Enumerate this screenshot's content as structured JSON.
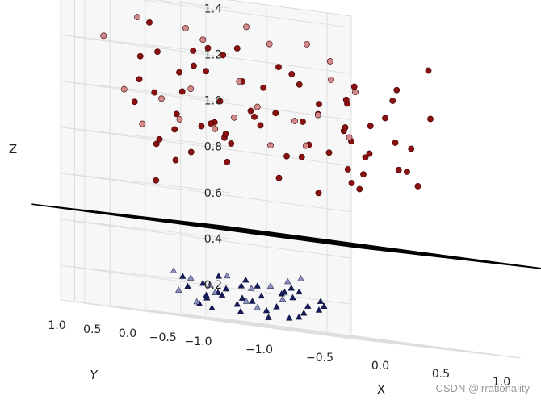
{
  "chart_data": {
    "type": "scatter",
    "projection": "3d",
    "title": "",
    "axes": {
      "x": {
        "label": "X",
        "ticks": [
          "−1.0",
          "−0.5",
          "0.0",
          "0.5",
          "1.0"
        ],
        "range": [
          -1.2,
          1.2
        ]
      },
      "y": {
        "label": "Y",
        "ticks": [
          "1.0",
          "0.5",
          "0.0",
          "−0.5",
          "−1.0"
        ],
        "range": [
          -1.2,
          1.2
        ]
      },
      "z": {
        "label": "Z",
        "ticks": [
          "0.2",
          "0.4",
          "0.6",
          "0.8",
          "1.0",
          "1.2",
          "1.4"
        ],
        "range": [
          0.05,
          1.45
        ]
      }
    },
    "grid": true,
    "plane": {
      "z": 0.45,
      "color": "#008000",
      "edge_color": "#000000",
      "divisions": 3
    },
    "series": [
      {
        "marker": "circle",
        "color": "#8b1010",
        "points": [
          [
            -1.05,
            0.2,
            1.3
          ],
          [
            -0.98,
            -0.3,
            1.2
          ],
          [
            -0.95,
            0.5,
            1.15
          ],
          [
            -0.92,
            0.0,
            1.1
          ],
          [
            -0.9,
            0.6,
            1.05
          ],
          [
            -0.95,
            0.3,
            1.0
          ],
          [
            -0.88,
            0.7,
            0.95
          ],
          [
            -0.92,
            -0.5,
            0.9
          ],
          [
            -0.9,
            0.1,
            0.85
          ],
          [
            -0.85,
            0.4,
            0.8
          ],
          [
            -0.8,
            -0.2,
            1.22
          ],
          [
            -0.75,
            0.6,
            1.18
          ],
          [
            -0.7,
            0.0,
            1.12
          ],
          [
            -0.72,
            0.3,
            1.02
          ],
          [
            -0.68,
            -0.6,
            0.97
          ],
          [
            -0.65,
            0.5,
            0.92
          ],
          [
            -0.62,
            0.2,
            0.88
          ],
          [
            -0.78,
            -0.4,
            0.84
          ],
          [
            -0.7,
            0.7,
            0.78
          ],
          [
            -0.82,
            0.5,
            0.62
          ],
          [
            -0.5,
            0.1,
            1.2
          ],
          [
            -0.45,
            0.6,
            1.14
          ],
          [
            -0.4,
            -0.3,
            1.08
          ],
          [
            -0.35,
            0.4,
            1.0
          ],
          [
            -0.3,
            0.0,
            0.95
          ],
          [
            -0.25,
            0.7,
            0.9
          ],
          [
            -0.42,
            0.2,
            0.86
          ],
          [
            -0.2,
            -0.5,
            0.8
          ],
          [
            -0.35,
            0.3,
            0.74
          ],
          [
            -0.55,
            -0.1,
            0.82
          ],
          [
            -0.15,
            0.5,
            1.24
          ],
          [
            -0.1,
            0.0,
            1.18
          ],
          [
            -0.05,
            0.6,
            1.1
          ],
          [
            0.0,
            -0.4,
            1.04
          ],
          [
            0.05,
            0.3,
            0.98
          ],
          [
            0.1,
            0.6,
            0.92
          ],
          [
            0.15,
            0.0,
            0.86
          ],
          [
            0.2,
            0.4,
            0.8
          ],
          [
            0.25,
            -0.6,
            0.76
          ],
          [
            0.02,
            0.2,
            0.7
          ],
          [
            0.3,
            0.5,
            1.16
          ],
          [
            0.35,
            -0.2,
            1.06
          ],
          [
            0.4,
            0.3,
            1.0
          ],
          [
            0.45,
            0.6,
            0.96
          ],
          [
            0.5,
            0.0,
            0.9
          ],
          [
            0.55,
            0.4,
            0.84
          ],
          [
            0.6,
            -0.5,
            0.8
          ],
          [
            0.62,
            0.2,
            0.72
          ],
          [
            0.48,
            0.7,
            1.12
          ],
          [
            0.38,
            -0.1,
            0.94
          ],
          [
            0.7,
            0.3,
            1.14
          ],
          [
            0.75,
            0.5,
            1.08
          ],
          [
            0.78,
            0.0,
            1.02
          ],
          [
            0.8,
            0.6,
            0.96
          ],
          [
            0.82,
            -0.3,
            0.9
          ],
          [
            0.85,
            0.4,
            0.84
          ],
          [
            0.88,
            0.7,
            0.78
          ],
          [
            0.9,
            0.1,
            1.1
          ],
          [
            0.92,
            -0.4,
            1.04
          ],
          [
            0.95,
            0.5,
            0.98
          ],
          [
            0.98,
            0.2,
            0.92
          ],
          [
            1.0,
            0.6,
            0.86
          ],
          [
            1.02,
            -0.2,
            1.25
          ],
          [
            1.05,
            0.3,
            1.15
          ],
          [
            0.96,
            0.0,
            0.8
          ],
          [
            0.86,
            0.5,
            0.7
          ],
          [
            0.7,
            -0.6,
            0.74
          ],
          [
            0.58,
            0.6,
            0.66
          ],
          [
            -0.6,
            0.6,
            0.72
          ],
          [
            -0.88,
            -0.1,
            0.76
          ]
        ]
      },
      {
        "marker": "circle",
        "color": "#d48a8a",
        "points": [
          [
            -0.55,
            0.9,
            1.45
          ],
          [
            -0.8,
            0.8,
            1.32
          ],
          [
            -1.02,
            0.9,
            1.22
          ],
          [
            -0.4,
            0.8,
            1.3
          ],
          [
            -0.2,
            0.9,
            1.26
          ],
          [
            0.1,
            0.8,
            1.34
          ],
          [
            0.35,
            0.9,
            1.28
          ],
          [
            0.6,
            0.8,
            1.3
          ],
          [
            0.85,
            0.9,
            1.24
          ],
          [
            1.0,
            0.8,
            1.12
          ],
          [
            -0.85,
            0.9,
            1.0
          ],
          [
            -0.6,
            0.8,
            0.98
          ],
          [
            -0.3,
            0.9,
            1.04
          ],
          [
            0.0,
            0.8,
            0.94
          ],
          [
            0.25,
            0.9,
            1.0
          ],
          [
            0.5,
            0.8,
            0.96
          ],
          [
            0.75,
            0.9,
            1.0
          ],
          [
            0.95,
            0.8,
            0.92
          ],
          [
            -0.7,
            0.9,
            0.86
          ],
          [
            -0.1,
            0.9,
            0.88
          ],
          [
            0.3,
            0.8,
            0.84
          ],
          [
            0.65,
            0.9,
            0.86
          ],
          [
            -0.45,
            0.8,
            0.9
          ],
          [
            0.1,
            0.9,
            1.1
          ],
          [
            0.8,
            0.8,
            1.16
          ]
        ]
      },
      {
        "marker": "triangle",
        "color": "#141a5a",
        "points": [
          [
            -0.6,
            0.5,
            0.22
          ],
          [
            -0.55,
            0.3,
            0.2
          ],
          [
            -0.5,
            0.6,
            0.18
          ],
          [
            -0.45,
            0.2,
            0.16
          ],
          [
            -0.4,
            0.5,
            0.14
          ],
          [
            -0.35,
            0.1,
            0.21
          ],
          [
            -0.3,
            0.4,
            0.19
          ],
          [
            -0.25,
            0.6,
            0.17
          ],
          [
            -0.2,
            0.2,
            0.15
          ],
          [
            -0.15,
            0.5,
            0.13
          ],
          [
            -0.1,
            0.3,
            0.22
          ],
          [
            -0.05,
            0.6,
            0.16
          ],
          [
            0.0,
            0.2,
            0.14
          ],
          [
            0.05,
            0.5,
            0.18
          ],
          [
            0.1,
            0.3,
            0.2
          ],
          [
            0.15,
            0.6,
            0.12
          ],
          [
            0.2,
            0.1,
            0.16
          ],
          [
            0.25,
            0.4,
            0.19
          ],
          [
            0.3,
            0.6,
            0.21
          ],
          [
            0.35,
            0.2,
            0.15
          ],
          [
            0.4,
            0.5,
            0.13
          ],
          [
            0.45,
            0.3,
            0.17
          ],
          [
            -0.52,
            0.4,
            0.11
          ],
          [
            -0.3,
            0.6,
            0.1
          ],
          [
            0.05,
            0.4,
            0.09
          ],
          [
            0.28,
            0.5,
            0.1
          ],
          [
            -0.42,
            0.3,
            0.24
          ],
          [
            0.18,
            0.3,
            0.23
          ],
          [
            0.42,
            0.6,
            0.22
          ],
          [
            -0.18,
            0.4,
            0.1
          ],
          [
            -0.58,
            0.2,
            0.15
          ],
          [
            0.48,
            0.4,
            0.19
          ],
          [
            0.36,
            0.5,
            0.11
          ],
          [
            -0.08,
            0.5,
            0.24
          ]
        ]
      },
      {
        "marker": "triangle",
        "color": "#8a8fc0",
        "points": [
          [
            -0.5,
            0.8,
            0.24
          ],
          [
            -0.3,
            0.9,
            0.22
          ],
          [
            0.0,
            0.9,
            0.25
          ],
          [
            0.3,
            0.8,
            0.23
          ],
          [
            0.5,
            0.9,
            0.26
          ],
          [
            -0.2,
            0.8,
            0.2
          ],
          [
            0.2,
            0.9,
            0.21
          ],
          [
            0.4,
            0.8,
            0.18
          ],
          [
            -0.4,
            0.9,
            0.16
          ],
          [
            0.1,
            0.8,
            0.15
          ],
          [
            0.55,
            0.8,
            0.28
          ],
          [
            -0.1,
            0.9,
            0.17
          ],
          [
            0.25,
            0.9,
            0.13
          ],
          [
            -0.25,
            0.9,
            0.12
          ]
        ]
      }
    ]
  },
  "watermark": "CSDN @irrationality"
}
